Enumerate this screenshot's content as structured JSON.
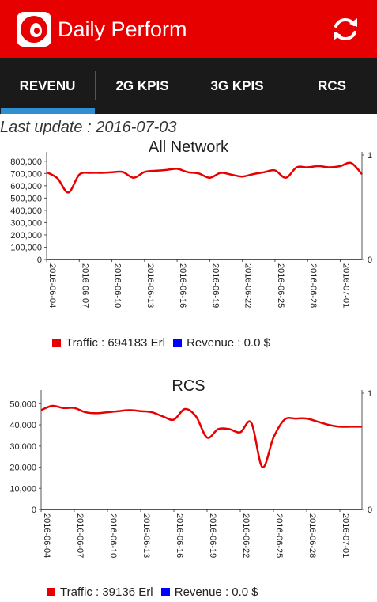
{
  "app_title": "Daily Perform",
  "tabs": [
    {
      "label": "REVENU",
      "active": true
    },
    {
      "label": "2G KPIS",
      "active": false
    },
    {
      "label": "3G KPIS",
      "active": false
    },
    {
      "label": "RCS",
      "active": false
    }
  ],
  "last_update": "Last update : 2016-07-03",
  "colors": {
    "brand": "#e60000",
    "tab_indicator": "#2f8fd0",
    "traffic": "#e60000",
    "revenue": "#0000ff"
  },
  "chart_data": [
    {
      "type": "line",
      "title": "All Network",
      "x": [
        "2016-06-04",
        "2016-06-05",
        "2016-06-06",
        "2016-06-07",
        "2016-06-08",
        "2016-06-09",
        "2016-06-10",
        "2016-06-11",
        "2016-06-12",
        "2016-06-13",
        "2016-06-14",
        "2016-06-15",
        "2016-06-16",
        "2016-06-17",
        "2016-06-18",
        "2016-06-19",
        "2016-06-20",
        "2016-06-21",
        "2016-06-22",
        "2016-06-23",
        "2016-06-24",
        "2016-06-25",
        "2016-06-26",
        "2016-06-27",
        "2016-06-28",
        "2016-06-29",
        "2016-06-30",
        "2016-07-01",
        "2016-07-02",
        "2016-07-03"
      ],
      "x_tick_labels": [
        "2016-06-04",
        "2016-06-07",
        "2016-06-10",
        "2016-06-13",
        "2016-06-16",
        "2016-06-19",
        "2016-06-22",
        "2016-06-25",
        "2016-06-28",
        "2016-07-01"
      ],
      "y_tick_labels": [
        "800,000",
        "700,000",
        "600,000",
        "500,000",
        "400,000",
        "300,000",
        "200,000",
        "100,000",
        "0"
      ],
      "y_ticks": [
        800000,
        700000,
        600000,
        500000,
        400000,
        300000,
        200000,
        100000,
        0
      ],
      "ylim": [
        0,
        850000
      ],
      "y2_tick_labels": [
        "1",
        "0"
      ],
      "y2lim": [
        0,
        1
      ],
      "series": [
        {
          "name": "Traffic",
          "axis": "left",
          "color": "#e60000",
          "values": [
            710000,
            660000,
            545000,
            690000,
            705000,
            705000,
            710000,
            712000,
            665000,
            712000,
            722000,
            728000,
            738000,
            710000,
            700000,
            665000,
            705000,
            690000,
            675000,
            695000,
            710000,
            725000,
            665000,
            750000,
            750000,
            760000,
            750000,
            760000,
            785000,
            694183
          ]
        },
        {
          "name": "Revenue",
          "axis": "right",
          "color": "#0000ff",
          "values": [
            0,
            0,
            0,
            0,
            0,
            0,
            0,
            0,
            0,
            0,
            0,
            0,
            0,
            0,
            0,
            0,
            0,
            0,
            0,
            0,
            0,
            0,
            0,
            0,
            0,
            0,
            0,
            0,
            0,
            0
          ]
        }
      ],
      "legend": [
        {
          "label": "Traffic : 694183 Erl",
          "color": "#e60000"
        },
        {
          "label": "Revenue : 0.0 $",
          "color": "#0000ff"
        }
      ],
      "legend_position": "bottom"
    },
    {
      "type": "line",
      "title": "RCS",
      "x": [
        "2016-06-04",
        "2016-06-05",
        "2016-06-06",
        "2016-06-07",
        "2016-06-08",
        "2016-06-09",
        "2016-06-10",
        "2016-06-11",
        "2016-06-12",
        "2016-06-13",
        "2016-06-14",
        "2016-06-15",
        "2016-06-16",
        "2016-06-17",
        "2016-06-18",
        "2016-06-19",
        "2016-06-20",
        "2016-06-21",
        "2016-06-22",
        "2016-06-23",
        "2016-06-24",
        "2016-06-25",
        "2016-06-26",
        "2016-06-27",
        "2016-06-28",
        "2016-06-29",
        "2016-06-30",
        "2016-07-01",
        "2016-07-02",
        "2016-07-03"
      ],
      "x_tick_labels": [
        "2016-06-04",
        "2016-06-07",
        "2016-06-10",
        "2016-06-13",
        "2016-06-16",
        "2016-06-19",
        "2016-06-22",
        "2016-06-25",
        "2016-06-28",
        "2016-07-01"
      ],
      "y_tick_labels": [
        "50,000",
        "40,000",
        "30,000",
        "20,000",
        "10,000",
        "0"
      ],
      "y_ticks": [
        50000,
        40000,
        30000,
        20000,
        10000,
        0
      ],
      "ylim": [
        0,
        55000
      ],
      "y2_tick_labels": [
        "1",
        "0"
      ],
      "y2lim": [
        0,
        1
      ],
      "series": [
        {
          "name": "Traffic",
          "axis": "left",
          "color": "#e60000",
          "values": [
            47000,
            49000,
            48000,
            48000,
            46000,
            45500,
            46000,
            46500,
            47000,
            46500,
            46000,
            44000,
            42500,
            47500,
            44000,
            34000,
            38000,
            38000,
            36500,
            41000,
            20000,
            34000,
            42500,
            43000,
            43000,
            41500,
            40000,
            39136,
            39136,
            39136
          ]
        },
        {
          "name": "Revenue",
          "axis": "right",
          "color": "#0000ff",
          "values": [
            0,
            0,
            0,
            0,
            0,
            0,
            0,
            0,
            0,
            0,
            0,
            0,
            0,
            0,
            0,
            0,
            0,
            0,
            0,
            0,
            0,
            0,
            0,
            0,
            0,
            0,
            0,
            0,
            0,
            0
          ]
        }
      ],
      "legend": [
        {
          "label": "Traffic : 39136 Erl",
          "color": "#e60000"
        },
        {
          "label": "Revenue : 0.0 $",
          "color": "#0000ff"
        }
      ],
      "legend_position": "bottom"
    }
  ]
}
